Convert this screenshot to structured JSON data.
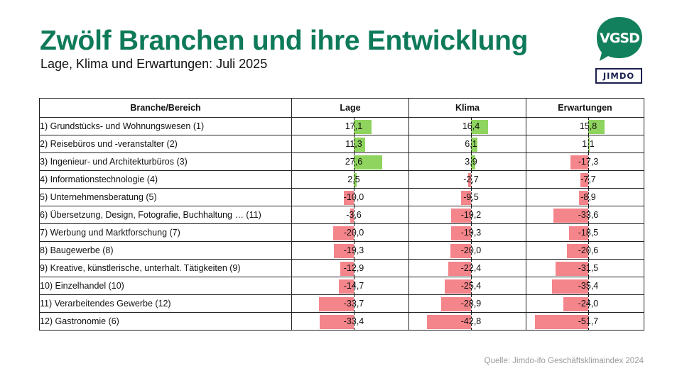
{
  "title": "Zwölf Branchen und ihre Entwicklung",
  "subtitle": "Lage, Klima und Erwartungen: Juli 2025",
  "logos": {
    "vgsd": "VGSD",
    "jimdo": "JIMDO"
  },
  "colors": {
    "title": "#0e7a5a",
    "positive": "#8fd45e",
    "negative": "#f4858b",
    "vgsd_green": "#12805c",
    "jimdo_navy": "#1a1f4e"
  },
  "source": "Quelle: Jimdo-ifo Geschäftsklimaindex 2024",
  "chart_data": {
    "type": "table",
    "title": "Zwölf Branchen und ihre Entwicklung",
    "subtitle": "Lage, Klima und Erwartungen: Juli 2025",
    "columns": [
      "Branche/Bereich",
      "Lage",
      "Klima",
      "Erwartungen"
    ],
    "value_range": [
      -55,
      30
    ],
    "rows": [
      {
        "label": "1) Grundstücks- und Wohnungswesen (1)",
        "values": [
          17.1,
          16.4,
          15.8
        ],
        "display": [
          "17,1",
          "16,4",
          "15,8"
        ]
      },
      {
        "label": "2) Reisebüros und -veranstalter (2)",
        "values": [
          11.3,
          6.1,
          1.1
        ],
        "display": [
          "11,3",
          "6,1",
          "1,1"
        ]
      },
      {
        "label": "3) Ingenieur- und Architekturbüros (3)",
        "values": [
          27.6,
          3.9,
          -17.3
        ],
        "display": [
          "27,6",
          "3,9",
          "-17,3"
        ]
      },
      {
        "label": "4) Informationstechnologie (4)",
        "values": [
          2.5,
          -2.7,
          -7.7
        ],
        "display": [
          "2,5",
          "-2,7",
          "-7,7"
        ]
      },
      {
        "label": "5) Unternehmensberatung (5)",
        "values": [
          -10.0,
          -9.5,
          -8.9
        ],
        "display": [
          "-10,0",
          "-9,5",
          "-8,9"
        ]
      },
      {
        "label": "6) Übersetzung, Design, Fotografie, Buchhaltung … (11)",
        "values": [
          -3.6,
          -19.2,
          -33.6
        ],
        "display": [
          "-3,6",
          "-19,2",
          "-33,6"
        ]
      },
      {
        "label": "7) Werbung und Marktforschung (7)",
        "values": [
          -20.0,
          -19.3,
          -18.5
        ],
        "display": [
          "-20,0",
          "-19,3",
          "-18,5"
        ]
      },
      {
        "label": "8) Baugewerbe (8)",
        "values": [
          -19.3,
          -20.0,
          -20.6
        ],
        "display": [
          "-19,3",
          "-20,0",
          "-20,6"
        ]
      },
      {
        "label": "9) Kreative, künstlerische, unterhalt. Tätigkeiten (9)",
        "values": [
          -12.9,
          -22.4,
          -31.5
        ],
        "display": [
          "-12,9",
          "-22,4",
          "-31,5"
        ]
      },
      {
        "label": "10) Einzelhandel (10)",
        "values": [
          -14.7,
          -25.4,
          -35.4
        ],
        "display": [
          "-14,7",
          "-25,4",
          "-35,4"
        ]
      },
      {
        "label": "11) Verarbeitendes Gewerbe (12)",
        "values": [
          -33.7,
          -28.9,
          -24.0
        ],
        "display": [
          "-33,7",
          "-28,9",
          "-24,0"
        ]
      },
      {
        "label": "12) Gastronomie (6)",
        "values": [
          -33.4,
          -42.8,
          -51.7
        ],
        "display": [
          "-33,4",
          "-42,8",
          "-51,7"
        ]
      }
    ]
  }
}
